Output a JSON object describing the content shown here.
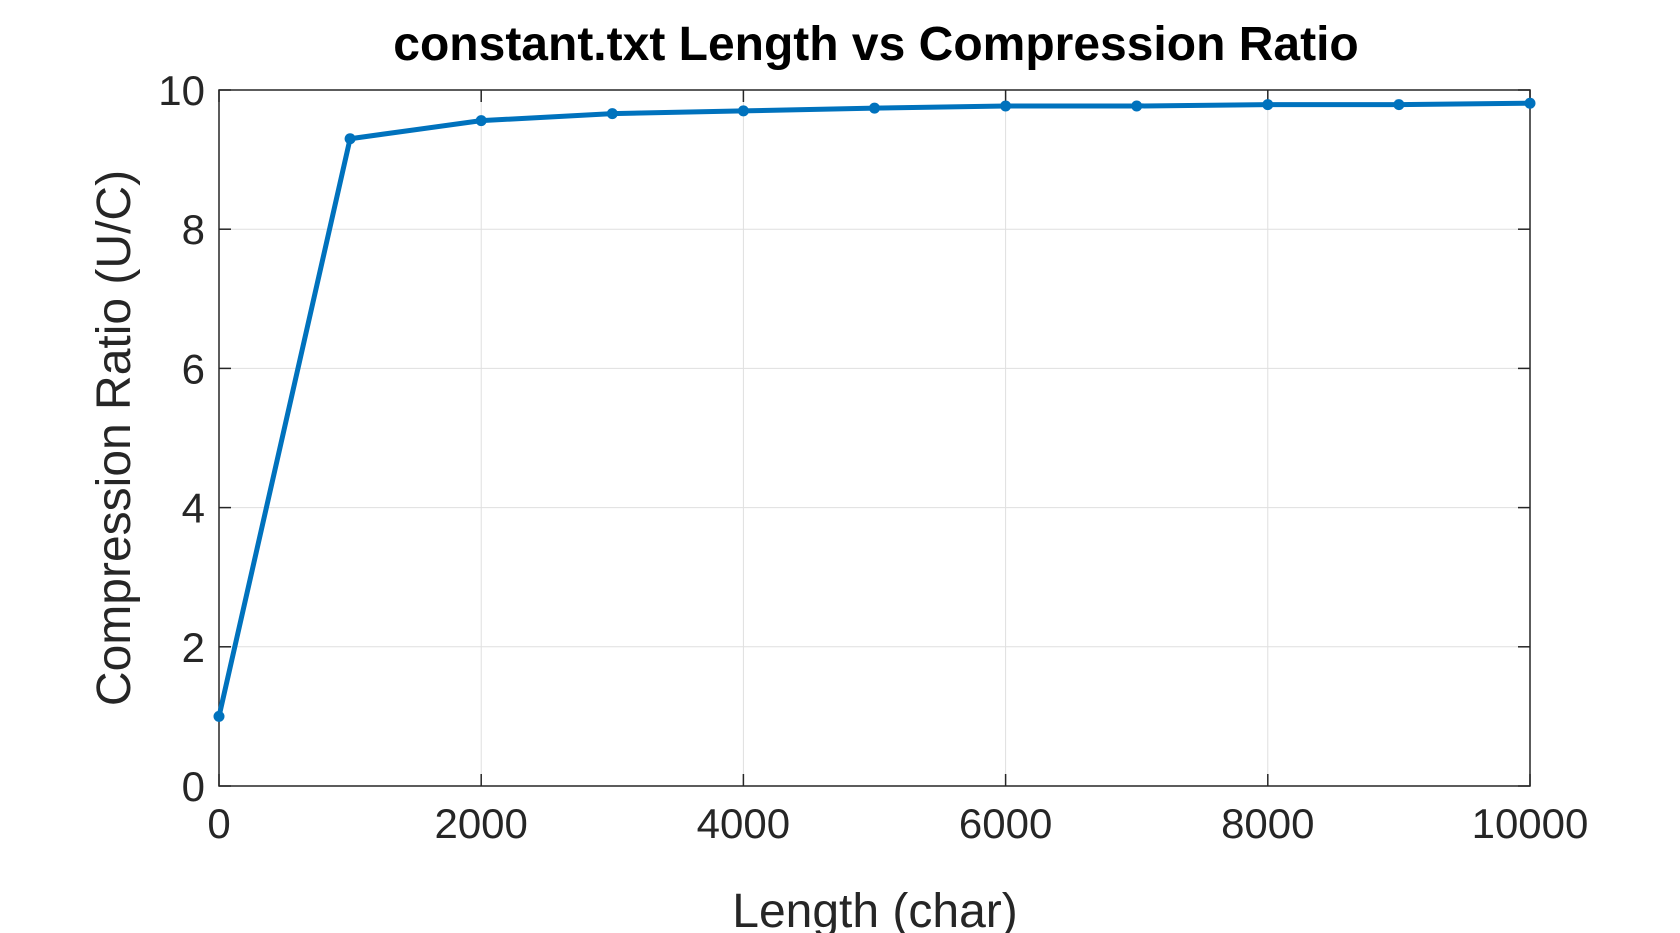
{
  "chart_data": {
    "type": "line",
    "title": "constant.txt Length vs Compression Ratio",
    "xlabel": "Length (char)",
    "ylabel": "Compression Ratio (U/C)",
    "xlim": [
      0,
      10000
    ],
    "ylim": [
      0,
      10
    ],
    "xticks": [
      0,
      2000,
      4000,
      6000,
      8000,
      10000
    ],
    "yticks": [
      0,
      2,
      4,
      6,
      8,
      10
    ],
    "xtick_labels": [
      "0",
      "2000",
      "4000",
      "6000",
      "8000",
      "10000"
    ],
    "ytick_labels": [
      "0",
      "2",
      "4",
      "6",
      "8",
      "10"
    ],
    "grid": true,
    "color": "#0072BD",
    "x": [
      0,
      1000,
      2000,
      3000,
      4000,
      5000,
      6000,
      7000,
      8000,
      9000,
      10000
    ],
    "y": [
      1.0,
      9.3,
      9.56,
      9.66,
      9.7,
      9.74,
      9.77,
      9.77,
      9.79,
      9.79,
      9.81
    ]
  }
}
